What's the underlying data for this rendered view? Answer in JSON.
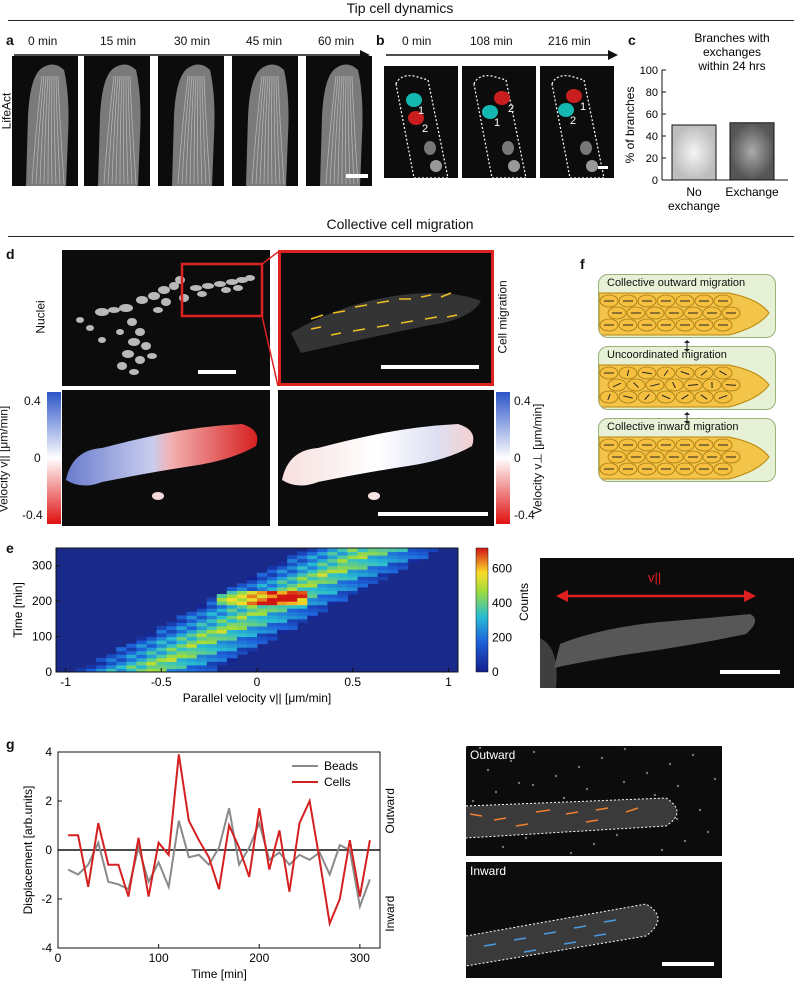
{
  "section_top": {
    "title": "Tip cell dynamics"
  },
  "section_mid": {
    "title": "Collective cell migration"
  },
  "panel_a": {
    "letter": "a",
    "times": [
      "0 min",
      "15 min",
      "30 min",
      "45 min",
      "60 min"
    ],
    "side_label": "LifeAct"
  },
  "panel_b": {
    "letter": "b",
    "times": [
      "0 min",
      "108 min",
      "216 min"
    ],
    "frame_labels": [
      [
        "1",
        "2"
      ],
      [
        "1",
        "2"
      ],
      [
        "2",
        "1"
      ]
    ]
  },
  "panel_c": {
    "letter": "c",
    "chart_data": {
      "type": "bar",
      "title": "Branches with exchanges within 24 hrs",
      "title_lines": [
        "Branches with",
        "exchanges",
        "within 24 hrs"
      ],
      "categories": [
        "No exchange",
        "Exchange"
      ],
      "category_lines": [
        [
          "No",
          "exchange"
        ],
        [
          "Exchange"
        ]
      ],
      "values": [
        50,
        52
      ],
      "ylabel": "% of branches",
      "ylim": [
        0,
        100
      ],
      "yticks": [
        "0",
        "20",
        "40",
        "60",
        "80",
        "100"
      ]
    }
  },
  "panel_d": {
    "letter": "d",
    "nuclei_label": "Nuclei",
    "migration_label": "Cell migration",
    "vpar_label": "Velocity v||  [μm/min]",
    "vperp_label": "Velocity v⊥ [μm/min]",
    "cbar_ticks_left": [
      "0.4",
      "0",
      "-0.4"
    ],
    "cbar_ticks_right": [
      "0.4",
      "0",
      "-0.4"
    ]
  },
  "panel_e": {
    "letter": "e",
    "chart_data": {
      "type": "heatmap",
      "xlabel": "Parallel velocity v||  [μm/min]",
      "ylabel": "Time [min]",
      "xticks": [
        "-1",
        "-0.5",
        "0",
        "0.5",
        "1"
      ],
      "yticks": [
        "0",
        "100",
        "200",
        "300"
      ],
      "colorbar_label": "Counts",
      "colorbar_ticks": [
        "0",
        "200",
        "400",
        "600"
      ],
      "xlim": [
        -1.05,
        1.05
      ],
      "ylim": [
        0,
        350
      ],
      "clim": [
        0,
        720
      ]
    },
    "arrow_label": "v||",
    "minus": "-",
    "plus": "+"
  },
  "panel_f": {
    "letter": "f",
    "boxes": [
      "Collective outward migration",
      "Uncoordinated migration",
      "Collective inward migration"
    ]
  },
  "panel_g": {
    "letter": "g",
    "chart_data": {
      "type": "line",
      "xlabel": "Time [min]",
      "ylabel": "Displacement [arb.units]",
      "xlim": [
        0,
        320
      ],
      "ylim": [
        -4,
        4
      ],
      "xticks": [
        "0",
        "100",
        "200",
        "300"
      ],
      "yticks": [
        "4",
        "2",
        "0",
        "-2",
        "-4"
      ],
      "side_top": "Outward",
      "side_bottom": "Inward",
      "x": [
        10,
        20,
        30,
        40,
        50,
        60,
        70,
        80,
        90,
        100,
        110,
        120,
        130,
        140,
        150,
        160,
        170,
        180,
        190,
        200,
        210,
        220,
        230,
        240,
        250,
        260,
        270,
        280,
        290,
        300,
        310
      ],
      "series": [
        {
          "name": "Beads",
          "color": "#8a8a8a",
          "values": [
            -0.8,
            -1.0,
            -0.6,
            0.3,
            -1.3,
            -1.4,
            -1.6,
            0.1,
            -1.3,
            -0.5,
            -1.5,
            1.2,
            -0.3,
            -0.2,
            -0.6,
            0.1,
            1.7,
            -0.6,
            0.1,
            1.1,
            -0.4,
            -0.1,
            -0.6,
            -0.2,
            -0.4,
            -0.1,
            -1.0,
            0.2,
            0.0,
            -2.3,
            -1.2
          ]
        },
        {
          "name": "Cells",
          "color": "#d42020",
          "values": [
            0.6,
            0.6,
            -1.5,
            1.1,
            -0.6,
            -0.6,
            -1.9,
            0.5,
            -1.9,
            0.3,
            -0.2,
            3.9,
            1.2,
            0.4,
            -0.3,
            -1.6,
            1.0,
            0.1,
            -1.1,
            1.7,
            -0.8,
            0.8,
            -1.7,
            1.1,
            2.0,
            -0.4,
            -3.0,
            -2.0,
            0.4,
            -1.9,
            0.4
          ]
        }
      ]
    },
    "outward_label": "Outward",
    "inward_label": "Inward"
  }
}
